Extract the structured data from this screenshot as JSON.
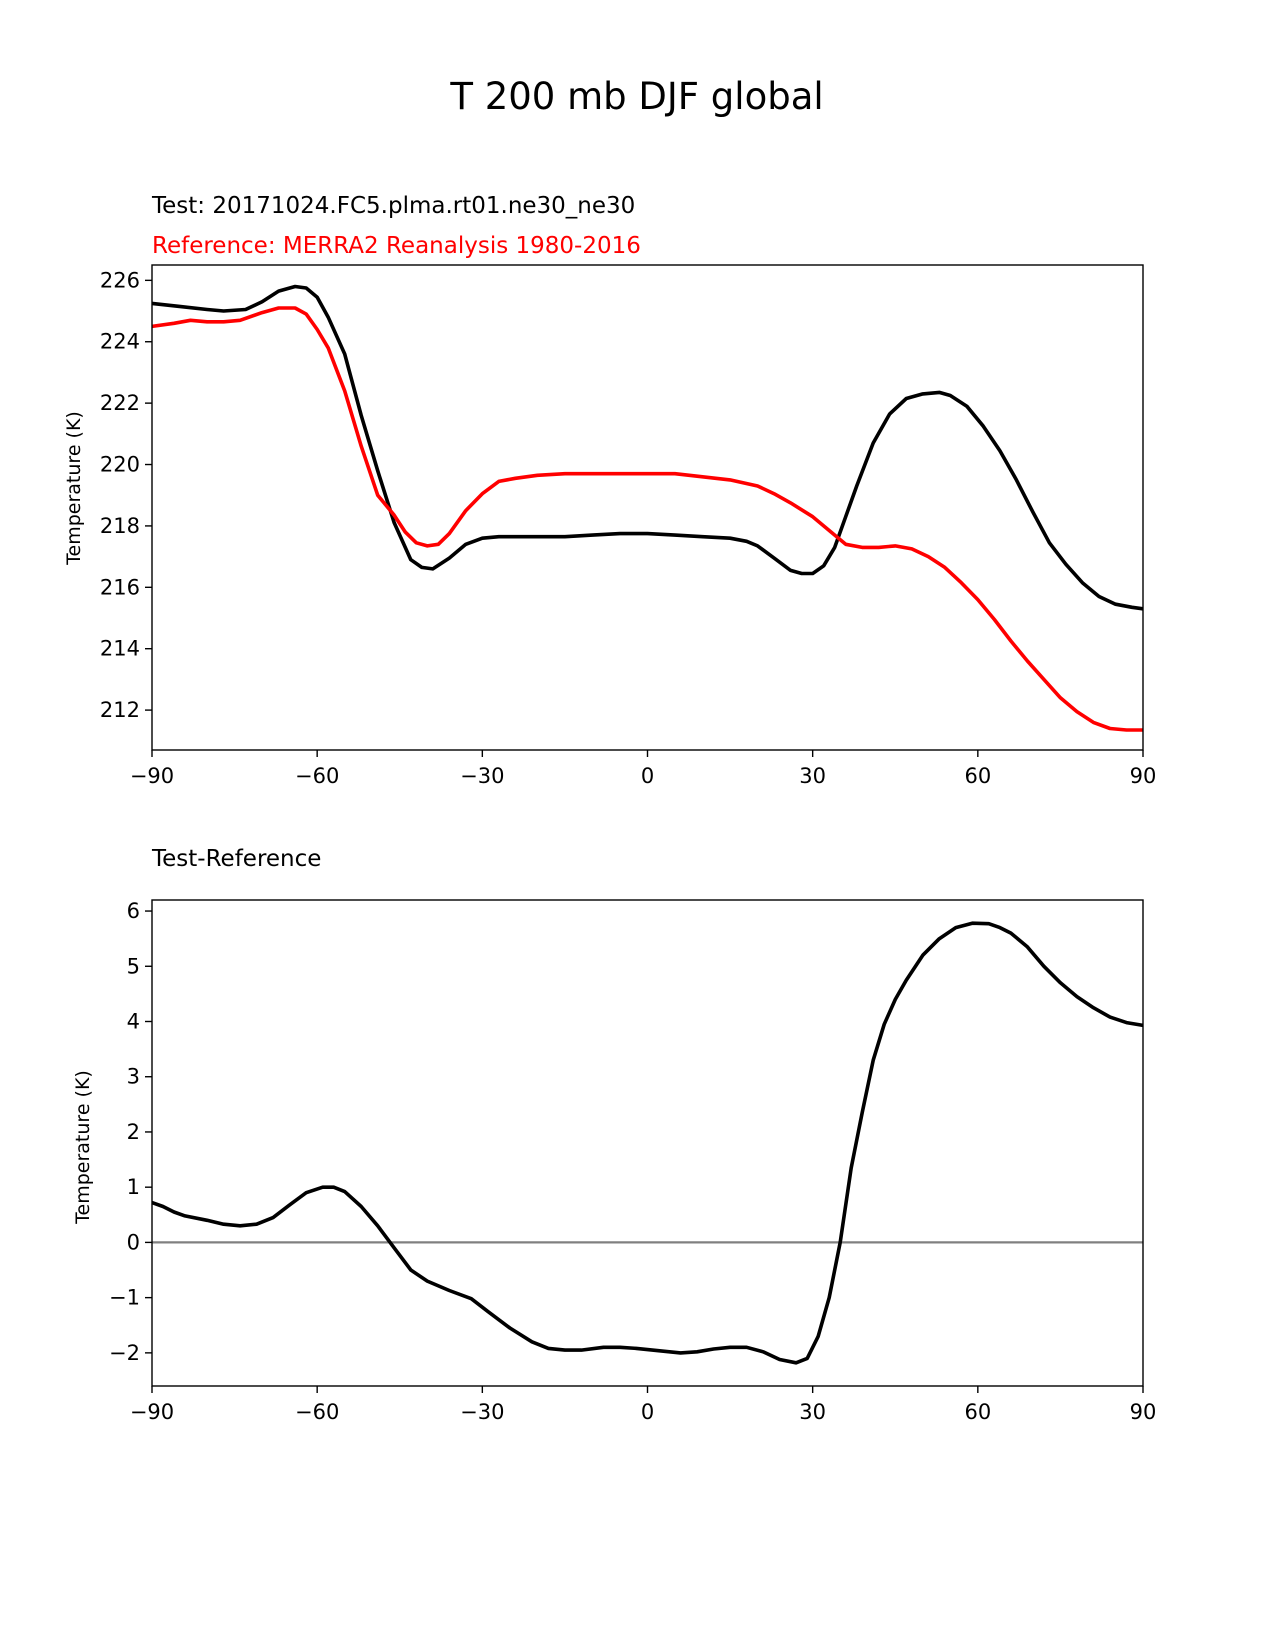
{
  "figure_title": "T 200 mb DJF global",
  "colors": {
    "test": "#000000",
    "reference": "#ff0000",
    "zero_line": "#808080",
    "axes": "#000000"
  },
  "chart_data": [
    {
      "type": "line",
      "subtitle_test": "Test: 20171024.FC5.plma.rt01.ne30_ne30",
      "subtitle_reference": "Reference: MERRA2 Reanalysis 1980-2016",
      "xlabel": "",
      "ylabel": "Temperature (K)",
      "xlim": [
        -90,
        90
      ],
      "ylim": [
        210.7,
        226.5
      ],
      "xticks": [
        -90,
        -60,
        -30,
        0,
        30,
        60,
        90
      ],
      "xtick_labels": [
        "−90",
        "−60",
        "−30",
        "0",
        "30",
        "60",
        "90"
      ],
      "yticks": [
        212,
        214,
        216,
        218,
        220,
        222,
        224,
        226
      ],
      "ytick_labels": [
        "212",
        "214",
        "216",
        "218",
        "220",
        "222",
        "224",
        "226"
      ],
      "series": [
        {
          "name": "Test",
          "color": "#000000",
          "x": [
            -90,
            -85,
            -80,
            -77,
            -73,
            -70,
            -67,
            -64,
            -62,
            -60,
            -58,
            -55,
            -52,
            -49,
            -46,
            -43,
            -41,
            -39,
            -36,
            -33,
            -30,
            -27,
            -24,
            -20,
            -15,
            -10,
            -5,
            0,
            5,
            10,
            15,
            18,
            20,
            23,
            26,
            28,
            30,
            32,
            34,
            36,
            38,
            41,
            44,
            47,
            50,
            53,
            55,
            58,
            61,
            64,
            67,
            70,
            73,
            76,
            79,
            82,
            85,
            88,
            90
          ],
          "y": [
            225.25,
            225.15,
            225.05,
            225.0,
            225.05,
            225.3,
            225.65,
            225.8,
            225.75,
            225.45,
            224.8,
            223.6,
            221.6,
            219.8,
            218.1,
            216.9,
            216.65,
            216.6,
            216.95,
            217.4,
            217.6,
            217.65,
            217.65,
            217.65,
            217.65,
            217.7,
            217.75,
            217.75,
            217.7,
            217.65,
            217.6,
            217.5,
            217.35,
            216.95,
            216.55,
            216.45,
            216.45,
            216.7,
            217.3,
            218.3,
            219.3,
            220.7,
            221.65,
            222.15,
            222.3,
            222.35,
            222.25,
            221.9,
            221.25,
            220.45,
            219.5,
            218.45,
            217.45,
            216.75,
            216.15,
            215.7,
            215.45,
            215.35,
            215.3
          ]
        },
        {
          "name": "Reference",
          "color": "#ff0000",
          "x": [
            -90,
            -86,
            -83,
            -80,
            -77,
            -74,
            -70,
            -67,
            -64,
            -62,
            -60,
            -58,
            -55,
            -52,
            -49,
            -46,
            -44,
            -42,
            -40,
            -38,
            -36,
            -33,
            -30,
            -27,
            -24,
            -20,
            -15,
            -10,
            -5,
            0,
            5,
            10,
            15,
            20,
            23,
            26,
            30,
            33,
            36,
            39,
            42,
            45,
            48,
            51,
            54,
            57,
            60,
            63,
            66,
            69,
            72,
            75,
            78,
            81,
            84,
            87,
            90
          ],
          "y": [
            224.5,
            224.6,
            224.7,
            224.65,
            224.65,
            224.7,
            224.95,
            225.1,
            225.1,
            224.9,
            224.4,
            223.8,
            222.4,
            220.6,
            219.0,
            218.35,
            217.8,
            217.45,
            217.35,
            217.4,
            217.75,
            218.5,
            219.05,
            219.45,
            219.55,
            219.65,
            219.7,
            219.7,
            219.7,
            219.7,
            219.7,
            219.6,
            219.5,
            219.3,
            219.05,
            218.75,
            218.3,
            217.85,
            217.4,
            217.3,
            217.3,
            217.35,
            217.25,
            217.0,
            216.65,
            216.15,
            215.6,
            214.95,
            214.25,
            213.6,
            213.0,
            212.4,
            211.95,
            211.6,
            211.4,
            211.35,
            211.35
          ]
        }
      ]
    },
    {
      "type": "line",
      "subtitle": "Test-Reference",
      "xlabel": "",
      "ylabel": "Temperature (K)",
      "xlim": [
        -90,
        90
      ],
      "ylim": [
        -2.6,
        6.2
      ],
      "xticks": [
        -90,
        -60,
        -30,
        0,
        30,
        60,
        90
      ],
      "xtick_labels": [
        "−90",
        "−60",
        "−30",
        "0",
        "30",
        "60",
        "90"
      ],
      "yticks": [
        -2,
        -1,
        0,
        1,
        2,
        3,
        4,
        5,
        6
      ],
      "ytick_labels": [
        "−2",
        "−1",
        "0",
        "1",
        "2",
        "3",
        "4",
        "5",
        "6"
      ],
      "zero_line": 0,
      "series": [
        {
          "name": "Test-Reference",
          "color": "#000000",
          "x": [
            -90,
            -88,
            -86,
            -84,
            -80,
            -77,
            -74,
            -71,
            -68,
            -65,
            -62,
            -59,
            -57,
            -55,
            -52,
            -49,
            -46,
            -43,
            -40,
            -36,
            -32,
            -29,
            -25,
            -21,
            -18,
            -15,
            -12,
            -8,
            -5,
            -2,
            2,
            6,
            9,
            12,
            15,
            18,
            21,
            24,
            27,
            29,
            31,
            33,
            35,
            37,
            39,
            41,
            43,
            45,
            47,
            50,
            53,
            56,
            59,
            62,
            64,
            66,
            69,
            72,
            75,
            78,
            81,
            84,
            87,
            90
          ],
          "y": [
            0.72,
            0.65,
            0.55,
            0.48,
            0.4,
            0.33,
            0.3,
            0.33,
            0.45,
            0.68,
            0.9,
            1.0,
            1.0,
            0.92,
            0.65,
            0.3,
            -0.1,
            -0.5,
            -0.7,
            -0.87,
            -1.02,
            -1.25,
            -1.55,
            -1.8,
            -1.92,
            -1.95,
            -1.95,
            -1.9,
            -1.9,
            -1.92,
            -1.96,
            -2.0,
            -1.98,
            -1.93,
            -1.9,
            -1.9,
            -1.98,
            -2.12,
            -2.18,
            -2.1,
            -1.7,
            -1.0,
            0.0,
            1.35,
            2.35,
            3.3,
            3.95,
            4.4,
            4.75,
            5.2,
            5.5,
            5.7,
            5.78,
            5.77,
            5.7,
            5.6,
            5.35,
            5.0,
            4.7,
            4.45,
            4.25,
            4.08,
            3.98,
            3.93
          ]
        }
      ]
    }
  ]
}
